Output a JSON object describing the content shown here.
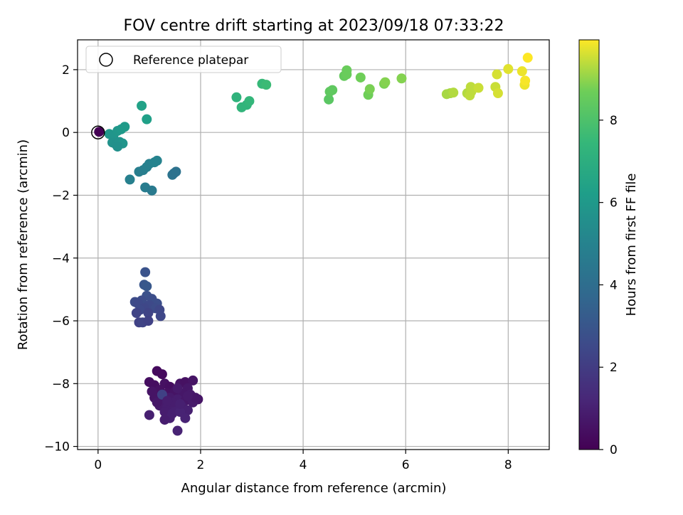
{
  "chart_data": {
    "type": "scatter",
    "title": "FOV centre drift starting at 2023/09/18 07:33:22",
    "xlabel": "Angular distance from reference (arcmin)",
    "ylabel": "Rotation from reference (arcmin)",
    "xlim": [
      -0.4,
      8.8
    ],
    "ylim": [
      -10.1,
      2.95
    ],
    "xticks": [
      0,
      2,
      4,
      6,
      8
    ],
    "xtick_labels": [
      "0",
      "2",
      "4",
      "6",
      "8"
    ],
    "yticks": [
      2,
      0,
      -2,
      -4,
      -6,
      -8,
      -10
    ],
    "ytick_labels": [
      "2",
      "0",
      "−2",
      "−4",
      "−6",
      "−8",
      "−10"
    ],
    "grid": true,
    "legend": {
      "placement": "top-left",
      "entries": [
        {
          "label": "Reference platepar",
          "marker": "open-circle"
        }
      ]
    },
    "colorbar": {
      "label": "Hours from first FF file",
      "colormap": "viridis",
      "range": [
        0,
        9.95
      ],
      "ticks": [
        0,
        2,
        4,
        6,
        8
      ],
      "tick_labels": [
        "0",
        "2",
        "4",
        "6",
        "8"
      ]
    },
    "reference_point": {
      "x": 0,
      "y": 0,
      "hours": 0
    },
    "series": [
      {
        "points": [
          [
            1.15,
            -7.6,
            0.3
          ],
          [
            1.25,
            -7.7,
            0.3
          ],
          [
            1.0,
            -7.95,
            0.4
          ],
          [
            1.1,
            -8.05,
            0.4
          ],
          [
            1.3,
            -8.0,
            0.5
          ],
          [
            1.4,
            -8.1,
            0.4
          ],
          [
            1.6,
            -8.0,
            0.6
          ],
          [
            1.7,
            -7.95,
            0.5
          ],
          [
            1.85,
            -7.9,
            0.6
          ],
          [
            1.75,
            -8.15,
            0.7
          ],
          [
            1.2,
            -8.2,
            0.5
          ],
          [
            1.35,
            -8.3,
            0.5
          ],
          [
            1.5,
            -8.25,
            0.6
          ],
          [
            1.65,
            -8.3,
            0.7
          ],
          [
            1.8,
            -8.35,
            0.8
          ],
          [
            1.95,
            -8.5,
            0.6
          ],
          [
            1.1,
            -8.45,
            0.6
          ],
          [
            1.25,
            -8.5,
            0.7
          ],
          [
            1.4,
            -8.45,
            0.8
          ],
          [
            1.55,
            -8.5,
            0.9
          ],
          [
            1.7,
            -8.55,
            0.7
          ],
          [
            1.85,
            -8.6,
            0.8
          ],
          [
            1.2,
            -8.7,
            0.8
          ],
          [
            1.35,
            -8.75,
            0.9
          ],
          [
            1.5,
            -8.7,
            1.0
          ],
          [
            1.65,
            -8.75,
            0.9
          ],
          [
            1.75,
            -8.85,
            1.0
          ],
          [
            1.3,
            -8.9,
            0.9
          ],
          [
            1.45,
            -8.95,
            1.0
          ],
          [
            1.6,
            -8.9,
            1.1
          ],
          [
            1.4,
            -9.1,
            1.0
          ],
          [
            1.3,
            -9.15,
            0.9
          ],
          [
            1.7,
            -9.1,
            1.1
          ],
          [
            1.55,
            -9.5,
            1.1
          ],
          [
            1.0,
            -9.0,
            1.0
          ],
          [
            1.15,
            -8.6,
            0.7
          ],
          [
            1.55,
            -8.15,
            0.8
          ],
          [
            1.45,
            -8.6,
            0.9
          ],
          [
            1.6,
            -8.65,
            1.0
          ],
          [
            1.9,
            -8.45,
            0.7
          ],
          [
            1.25,
            -8.35,
            2.2
          ],
          [
            1.05,
            -8.25,
            0.6
          ],
          [
            1.75,
            -8.4,
            0.8
          ],
          [
            1.35,
            -8.55,
            0.9
          ]
        ]
      },
      {
        "points": [
          [
            0.92,
            -4.45,
            2.9
          ],
          [
            0.9,
            -4.85,
            3.0
          ],
          [
            0.95,
            -4.9,
            3.1
          ],
          [
            0.95,
            -5.2,
            2.8
          ],
          [
            1.05,
            -5.3,
            2.7
          ],
          [
            0.85,
            -5.35,
            2.6
          ],
          [
            1.15,
            -5.45,
            2.7
          ],
          [
            0.72,
            -5.4,
            2.6
          ],
          [
            0.78,
            -5.45,
            2.5
          ],
          [
            1.0,
            -5.5,
            2.5
          ],
          [
            1.12,
            -5.6,
            2.6
          ],
          [
            0.9,
            -5.6,
            2.4
          ],
          [
            0.82,
            -5.65,
            2.5
          ],
          [
            0.75,
            -5.75,
            2.3
          ],
          [
            1.2,
            -5.65,
            2.4
          ],
          [
            0.98,
            -5.75,
            2.3
          ],
          [
            1.22,
            -5.85,
            2.4
          ],
          [
            0.8,
            -6.05,
            2.2
          ],
          [
            0.87,
            -6.05,
            2.3
          ],
          [
            0.98,
            -6.0,
            2.2
          ]
        ]
      },
      {
        "points": [
          [
            0.62,
            -1.5,
            4.9
          ],
          [
            0.8,
            -1.25,
            4.8
          ],
          [
            0.88,
            -1.2,
            4.8
          ],
          [
            0.95,
            -1.1,
            4.9
          ],
          [
            1.0,
            -1.0,
            4.9
          ],
          [
            1.1,
            -0.95,
            5.0
          ],
          [
            1.15,
            -0.9,
            5.0
          ],
          [
            0.92,
            -1.75,
            4.7
          ],
          [
            1.05,
            -1.85,
            4.6
          ],
          [
            1.45,
            -1.35,
            4.3
          ],
          [
            1.48,
            -1.3,
            4.2
          ],
          [
            1.52,
            -1.25,
            4.2
          ]
        ]
      },
      {
        "points": [
          [
            0.02,
            0.02,
            0.0
          ],
          [
            0.85,
            0.85,
            6.4
          ],
          [
            0.95,
            0.42,
            6.3
          ],
          [
            0.22,
            -0.05,
            5.9
          ],
          [
            0.3,
            -0.1,
            5.8
          ],
          [
            0.38,
            0.05,
            5.9
          ],
          [
            0.45,
            0.1,
            6.0
          ],
          [
            0.52,
            0.18,
            6.1
          ],
          [
            0.28,
            -0.32,
            5.7
          ],
          [
            0.35,
            -0.38,
            5.6
          ],
          [
            0.42,
            -0.3,
            5.7
          ],
          [
            0.48,
            -0.35,
            5.8
          ],
          [
            0.38,
            -0.45,
            5.6
          ]
        ]
      },
      {
        "points": [
          [
            2.7,
            1.12,
            7.2
          ],
          [
            2.8,
            0.8,
            7.3
          ],
          [
            2.9,
            0.88,
            7.3
          ],
          [
            2.95,
            1.0,
            7.4
          ],
          [
            3.2,
            1.55,
            7.5
          ],
          [
            3.28,
            1.52,
            7.6
          ]
        ]
      },
      {
        "points": [
          [
            4.5,
            1.05,
            8.3
          ],
          [
            4.52,
            1.3,
            8.4
          ],
          [
            4.57,
            1.35,
            8.4
          ],
          [
            4.8,
            1.8,
            8.5
          ],
          [
            4.85,
            1.85,
            8.6
          ],
          [
            4.85,
            1.98,
            8.6
          ],
          [
            5.12,
            1.75,
            8.7
          ],
          [
            5.27,
            1.2,
            8.7
          ],
          [
            5.3,
            1.38,
            8.8
          ],
          [
            5.58,
            1.55,
            8.8
          ],
          [
            5.6,
            1.6,
            8.9
          ],
          [
            5.92,
            1.72,
            8.9
          ]
        ]
      },
      {
        "points": [
          [
            6.8,
            1.22,
            9.2
          ],
          [
            6.87,
            1.25,
            9.2
          ],
          [
            6.93,
            1.27,
            9.3
          ],
          [
            7.2,
            1.25,
            9.3
          ],
          [
            7.25,
            1.18,
            9.4
          ],
          [
            7.27,
            1.45,
            9.4
          ],
          [
            7.28,
            1.3,
            9.4
          ],
          [
            7.42,
            1.42,
            9.5
          ],
          [
            7.75,
            1.45,
            9.5
          ],
          [
            7.78,
            1.85,
            9.6
          ],
          [
            7.8,
            1.25,
            9.6
          ],
          [
            8.0,
            2.02,
            9.7
          ],
          [
            8.27,
            1.95,
            9.8
          ],
          [
            8.32,
            1.52,
            9.8
          ],
          [
            8.33,
            1.65,
            9.9
          ],
          [
            8.38,
            2.38,
            9.95
          ]
        ]
      }
    ]
  }
}
